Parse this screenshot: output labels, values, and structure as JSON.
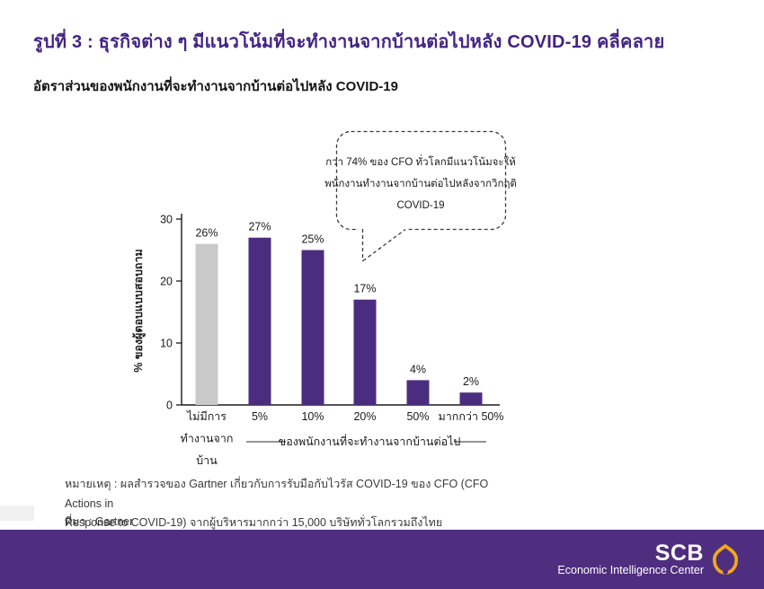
{
  "title": "รูปที่ 3 : ธุรกิจต่าง ๆ มีแนวโน้มที่จะทำงานจากบ้านต่อไปหลัง COVID-19 คลี่คลาย",
  "subtitle": "อัตราส่วนของพนักงานที่จะทำงานจากบ้านต่อไปหลัง COVID-19",
  "callout": {
    "lines": [
      "กว่า 74% ของ CFO ทั่วโลกมีแนวโน้มจะให้",
      "พนักงานทำงานจากบ้านต่อไปหลังจากวิกฤติ",
      "COVID-19"
    ]
  },
  "chart_data": {
    "type": "bar",
    "title": "อัตราส่วนของพนักงานที่จะทำงานจากบ้านต่อไปหลัง COVID-19",
    "categories": [
      "ไม่มีการทำงานจากบ้าน",
      "5%",
      "10%",
      "20%",
      "50%",
      "มากกว่า 50%"
    ],
    "category_display_lines": [
      [
        "ไม่มีการ",
        "ทำงานจาก",
        "บ้าน"
      ],
      [
        "5%"
      ],
      [
        "10%"
      ],
      [
        "20%"
      ],
      [
        "50%"
      ],
      [
        "มากกว่า 50%"
      ]
    ],
    "values": [
      26,
      27,
      25,
      17,
      4,
      2
    ],
    "value_labels": [
      "26%",
      "27%",
      "25%",
      "17%",
      "4%",
      "2%"
    ],
    "bar_colors": [
      "#c9c9c9",
      "#4b2d80",
      "#4b2d80",
      "#4b2d80",
      "#4b2d80",
      "#4b2d80"
    ],
    "ylabel": "% ของผู้ตอบแบบสอบถาม",
    "xlabel_group": "ของพนักงานที่จะทำงานจากบ้านต่อไป",
    "ylim": [
      0,
      30
    ],
    "yticks": [
      0,
      10,
      20,
      30
    ],
    "grid": false,
    "legend": "none"
  },
  "footnote": {
    "lines": [
      "หมายเหตุ : ผลสำรวจของ Gartner เกี่ยวกับการรับมือกับไวรัส COVID-19 ของ CFO (CFO Actions in",
      "Response to COVID-19) จากผู้บริหารมากกว่า 15,000 บริษัททั่วโลกรวมถึงไทย"
    ]
  },
  "source": "ที่มา : Gartner",
  "footer": {
    "brand": "SCB",
    "brand_sub": "Economic Intelligence Center"
  },
  "colors": {
    "title_purple": "#432483",
    "bar_purple": "#4b2d80",
    "bar_gray": "#c9c9c9",
    "band_purple": "#4f2d7f",
    "logo_gold": "#f0a81c",
    "axis_black": "#1a1a1a"
  }
}
